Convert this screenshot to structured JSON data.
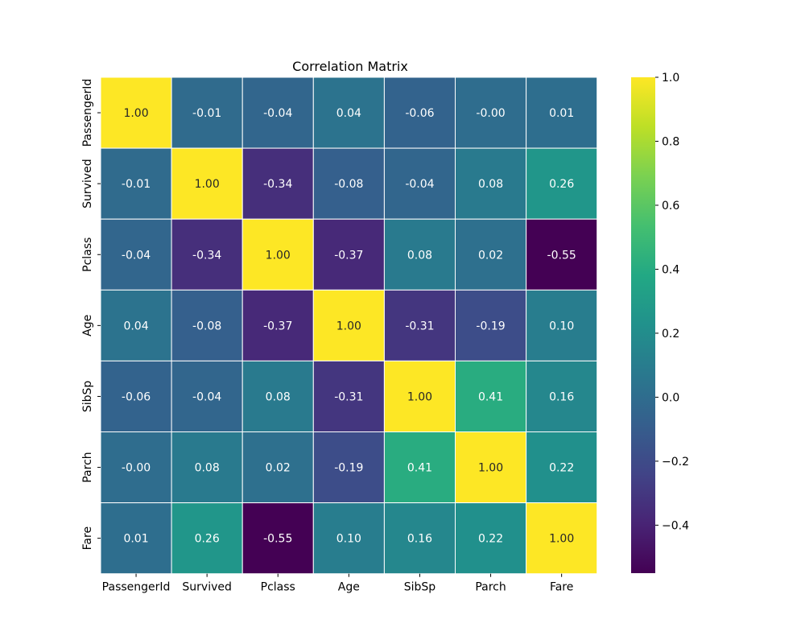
{
  "chart_data": {
    "type": "heatmap",
    "title": "Correlation Matrix",
    "xlabel": "",
    "ylabel": "",
    "x_labels": [
      "PassengerId",
      "Survived",
      "Pclass",
      "Age",
      "SibSp",
      "Parch",
      "Fare"
    ],
    "y_labels": [
      "PassengerId",
      "Survived",
      "Pclass",
      "Age",
      "SibSp",
      "Parch",
      "Fare"
    ],
    "values": [
      [
        1.0,
        -0.01,
        -0.04,
        0.04,
        -0.06,
        -0.0,
        0.01
      ],
      [
        -0.01,
        1.0,
        -0.34,
        -0.08,
        -0.04,
        0.08,
        0.26
      ],
      [
        -0.04,
        -0.34,
        1.0,
        -0.37,
        0.08,
        0.02,
        -0.55
      ],
      [
        0.04,
        -0.08,
        -0.37,
        1.0,
        -0.31,
        -0.19,
        0.1
      ],
      [
        -0.06,
        -0.04,
        0.08,
        -0.31,
        1.0,
        0.41,
        0.16
      ],
      [
        -0.0,
        0.08,
        0.02,
        -0.19,
        0.41,
        1.0,
        0.22
      ],
      [
        0.01,
        0.26,
        -0.55,
        0.1,
        0.16,
        0.22,
        1.0
      ]
    ],
    "cell_labels": [
      [
        "1.00",
        "-0.01",
        "-0.04",
        "0.04",
        "-0.06",
        "-0.00",
        "0.01"
      ],
      [
        "-0.01",
        "1.00",
        "-0.34",
        "-0.08",
        "-0.04",
        "0.08",
        "0.26"
      ],
      [
        "-0.04",
        "-0.34",
        "1.00",
        "-0.37",
        "0.08",
        "0.02",
        "-0.55"
      ],
      [
        "0.04",
        "-0.08",
        "-0.37",
        "1.00",
        "-0.31",
        "-0.19",
        "0.10"
      ],
      [
        "-0.06",
        "-0.04",
        "0.08",
        "-0.31",
        "1.00",
        "0.41",
        "0.16"
      ],
      [
        "-0.00",
        "0.08",
        "0.02",
        "-0.19",
        "0.41",
        "1.00",
        "0.22"
      ],
      [
        "0.01",
        "0.26",
        "-0.55",
        "0.10",
        "0.16",
        "0.22",
        "1.00"
      ]
    ],
    "colormap": "viridis",
    "color_range": [
      -0.55,
      1.0
    ],
    "colorbar": {
      "ticks": [
        1.0,
        0.8,
        0.6,
        0.4,
        0.2,
        0.0,
        -0.2,
        -0.4
      ],
      "tick_labels": [
        "1.0",
        "0.8",
        "0.6",
        "0.4",
        "0.2",
        "0.0",
        "−0.2",
        "−0.4"
      ],
      "placement": "right"
    },
    "grid": false,
    "cell_border_color": "#ffffff"
  }
}
